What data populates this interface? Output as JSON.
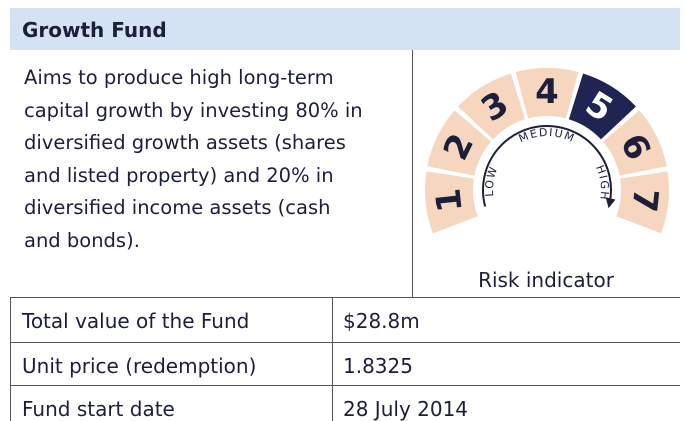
{
  "header": {
    "title": "Growth Fund"
  },
  "description": {
    "lines": [
      "Aims to produce high long-term",
      "capital growth by investing 80% in",
      "diversified growth assets (shares",
      "and listed property) and 20% in",
      "diversified income assets (cash",
      "and bonds)."
    ]
  },
  "risk_indicator": {
    "levels": [
      "1",
      "2",
      "3",
      "4",
      "5",
      "6",
      "7"
    ],
    "selected": 5,
    "low": "LOW",
    "medium": "MEDIUM",
    "high": "HIGH",
    "caption": "Risk indicator"
  },
  "table": {
    "rows": [
      [
        "Total value of the Fund",
        "$28.8m"
      ],
      [
        "Unit price (redemption)",
        "1.8325"
      ],
      [
        "Fund start date",
        "28 July 2014"
      ]
    ]
  }
}
